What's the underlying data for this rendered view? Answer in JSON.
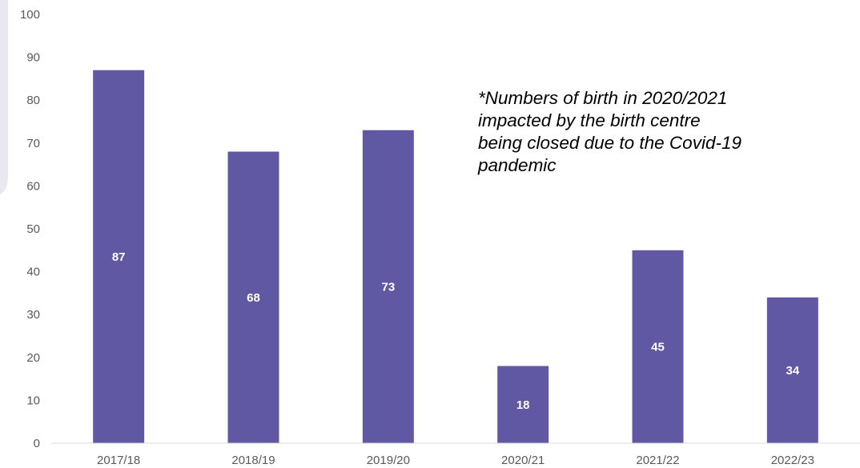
{
  "chart_data": {
    "type": "bar",
    "categories": [
      "2017/18",
      "2018/19",
      "2019/20",
      "2020/21",
      "2021/22",
      "2022/23"
    ],
    "values": [
      87,
      68,
      73,
      18,
      45,
      34
    ],
    "data_labels": [
      "87",
      "68",
      "73",
      "18",
      "45",
      "34"
    ],
    "title": "",
    "xlabel": "",
    "ylabel": "",
    "ylim": [
      0,
      100
    ],
    "yticks": [
      "0",
      "10",
      "20",
      "30",
      "40",
      "50",
      "60",
      "70",
      "80",
      "90",
      "100"
    ],
    "grid": false,
    "legend": "none",
    "annotation": [
      "*Numbers of birth in 2020/2021",
      "impacted by the birth centre",
      "being closed due to the Covid-19",
      "pandemic"
    ]
  },
  "colors": {
    "bar": "#6158A3",
    "data_label": "#FFFFFF",
    "axis_text": "#595959",
    "axis_line": "#D9D9D9",
    "side_panel": "#E9E7F2"
  }
}
